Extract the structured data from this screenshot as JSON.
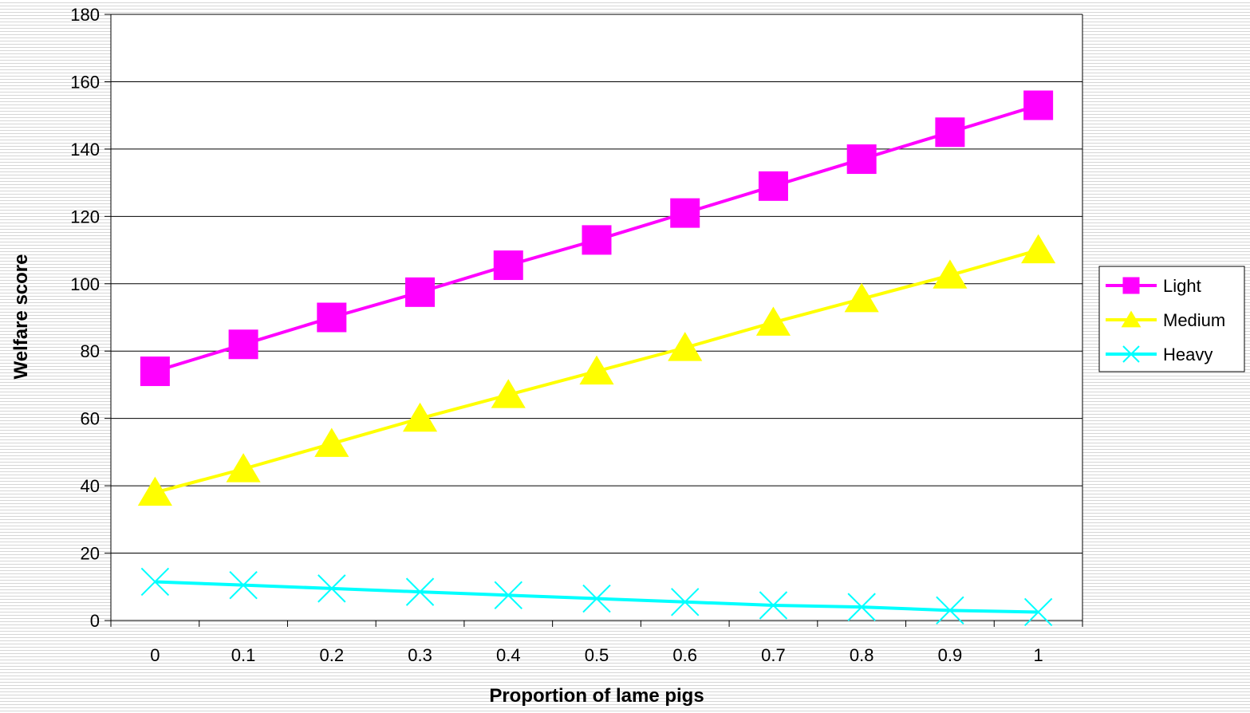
{
  "chart_data": {
    "type": "line",
    "title": "",
    "xlabel": "Proportion of lame pigs",
    "ylabel": "Welfare score",
    "categories": [
      "0",
      "0.1",
      "0.2",
      "0.3",
      "0.4",
      "0.5",
      "0.6",
      "0.7",
      "0.8",
      "0.9",
      "1"
    ],
    "x": [
      0,
      0.1,
      0.2,
      0.3,
      0.4,
      0.5,
      0.6,
      0.7,
      0.8,
      0.9,
      1
    ],
    "ylim": [
      0,
      180
    ],
    "yticks": [
      0,
      20,
      40,
      60,
      80,
      100,
      120,
      140,
      160,
      180
    ],
    "grid": "horizontal",
    "legend_position": "right",
    "series": [
      {
        "name": "Light",
        "marker": "square",
        "color": "#ff00ff",
        "values": [
          74,
          82,
          90,
          97.5,
          105.5,
          113,
          121,
          129,
          137,
          145,
          153
        ]
      },
      {
        "name": "Medium",
        "marker": "triangle",
        "color": "#ffff00",
        "values": [
          38,
          45,
          52.5,
          60,
          67,
          74,
          81,
          88.5,
          95.5,
          102.5,
          110
        ]
      },
      {
        "name": "Heavy",
        "marker": "x",
        "color": "#00ffff",
        "values": [
          11.5,
          10.5,
          9.5,
          8.5,
          7.5,
          6.5,
          5.5,
          4.5,
          4,
          3,
          2.5
        ]
      }
    ]
  }
}
